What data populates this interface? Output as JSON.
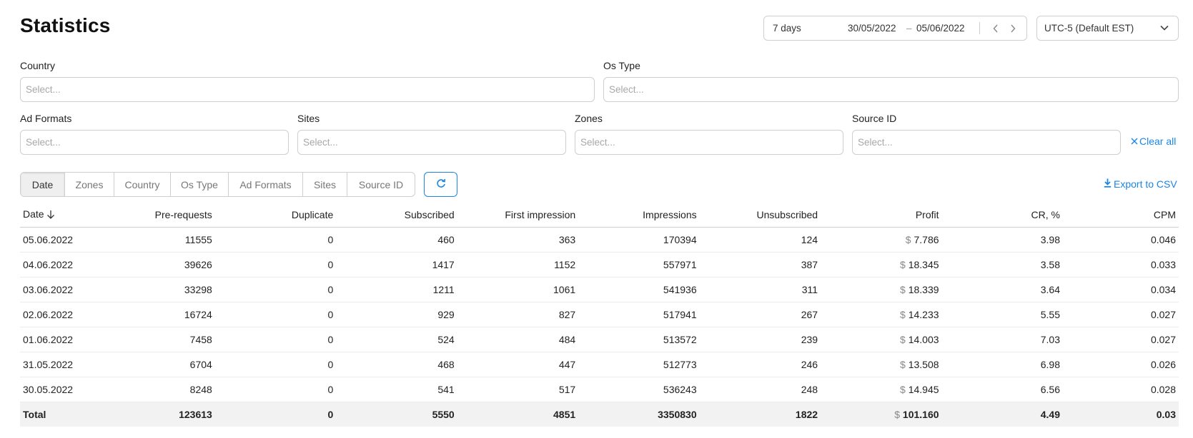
{
  "page": {
    "title": "Statistics"
  },
  "header": {
    "period": "7 days",
    "date_from": "30/05/2022",
    "date_sep": "–",
    "date_to": "05/06/2022",
    "timezone": "UTC-5 (Default EST)"
  },
  "filters": {
    "country": {
      "label": "Country",
      "placeholder": "Select..."
    },
    "os_type": {
      "label": "Os Type",
      "placeholder": "Select..."
    },
    "ad_formats": {
      "label": "Ad Formats",
      "placeholder": "Select..."
    },
    "sites": {
      "label": "Sites",
      "placeholder": "Select..."
    },
    "zones": {
      "label": "Zones",
      "placeholder": "Select..."
    },
    "source_id": {
      "label": "Source ID",
      "placeholder": "Select..."
    },
    "clear_all": "Clear all"
  },
  "group_tabs": [
    {
      "label": "Date",
      "active": true
    },
    {
      "label": "Zones",
      "active": false
    },
    {
      "label": "Country",
      "active": false
    },
    {
      "label": "Os Type",
      "active": false
    },
    {
      "label": "Ad Formats",
      "active": false
    },
    {
      "label": "Sites",
      "active": false
    },
    {
      "label": "Source ID",
      "active": false
    }
  ],
  "export_label": "Export to CSV",
  "colors": {
    "accent": "#1a86e6",
    "total_row_bg": "#f2f2f2"
  },
  "table": {
    "columns": [
      "Date",
      "Pre-requests",
      "Duplicate",
      "Subscribed",
      "First impression",
      "Impressions",
      "Unsubscribed",
      "Profit",
      "CR, %",
      "CPM"
    ],
    "currency_symbol": "$",
    "rows": [
      [
        "05.06.2022",
        "11555",
        "0",
        "460",
        "363",
        "170394",
        "124",
        "7.786",
        "3.98",
        "0.046"
      ],
      [
        "04.06.2022",
        "39626",
        "0",
        "1417",
        "1152",
        "557971",
        "387",
        "18.345",
        "3.58",
        "0.033"
      ],
      [
        "03.06.2022",
        "33298",
        "0",
        "1211",
        "1061",
        "541936",
        "311",
        "18.339",
        "3.64",
        "0.034"
      ],
      [
        "02.06.2022",
        "16724",
        "0",
        "929",
        "827",
        "517941",
        "267",
        "14.233",
        "5.55",
        "0.027"
      ],
      [
        "01.06.2022",
        "7458",
        "0",
        "524",
        "484",
        "513572",
        "239",
        "14.003",
        "7.03",
        "0.027"
      ],
      [
        "31.05.2022",
        "6704",
        "0",
        "468",
        "447",
        "512773",
        "246",
        "13.508",
        "6.98",
        "0.026"
      ],
      [
        "30.05.2022",
        "8248",
        "0",
        "541",
        "517",
        "536243",
        "248",
        "14.945",
        "6.56",
        "0.028"
      ]
    ],
    "total": [
      "Total",
      "123613",
      "0",
      "5550",
      "4851",
      "3350830",
      "1822",
      "101.160",
      "4.49",
      "0.03"
    ]
  }
}
